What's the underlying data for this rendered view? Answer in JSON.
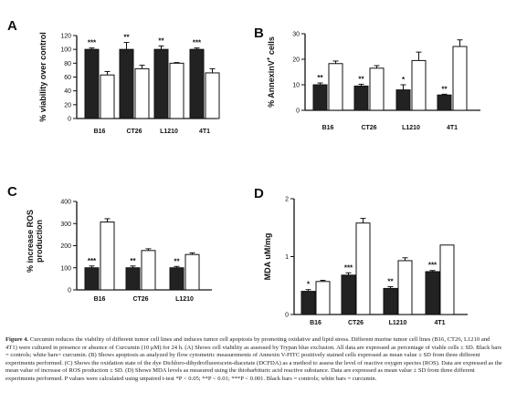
{
  "chart_data": [
    {
      "panel": "A",
      "type": "bar",
      "ylabel": "% viability over control",
      "ylim": [
        0,
        120
      ],
      "yticks": [
        0,
        20,
        40,
        60,
        80,
        100,
        120
      ],
      "categories": [
        "B16",
        "CT26",
        "L1210",
        "4T1"
      ],
      "series": [
        {
          "values": [
            100,
            100,
            100,
            100
          ],
          "errors": [
            2,
            10,
            5,
            2
          ],
          "color": "#222222"
        },
        {
          "values": [
            63,
            72,
            80,
            66
          ],
          "errors": [
            5,
            5,
            1,
            6
          ],
          "color": "#ffffff"
        }
      ],
      "significance": [
        "***",
        "**",
        "**",
        "***"
      ]
    },
    {
      "panel": "B",
      "type": "bar",
      "ylabel": "% AnnexinV+ cells",
      "ylim": [
        0,
        30
      ],
      "yticks": [
        0,
        10,
        20,
        30
      ],
      "categories": [
        "B16",
        "CT26",
        "L1210",
        "4T1"
      ],
      "series": [
        {
          "values": [
            10,
            9.5,
            8,
            6
          ],
          "errors": [
            0.7,
            0.7,
            2,
            0.3
          ],
          "color": "#222222"
        },
        {
          "values": [
            18.3,
            16.5,
            19.5,
            25
          ],
          "errors": [
            1,
            1,
            3.3,
            2.6
          ],
          "color": "#ffffff"
        }
      ],
      "significance": [
        "**",
        "**",
        "*",
        "**"
      ]
    },
    {
      "panel": "C",
      "type": "bar",
      "ylabel": "% increase ROS production",
      "ylim": [
        0,
        400
      ],
      "yticks": [
        0,
        100,
        200,
        300,
        400
      ],
      "categories": [
        "B16",
        "CT26",
        "L1210"
      ],
      "series": [
        {
          "values": [
            100,
            100,
            100
          ],
          "errors": [
            8,
            8,
            6
          ],
          "color": "#222222"
        },
        {
          "values": [
            307,
            178,
            160
          ],
          "errors": [
            15,
            8,
            7
          ],
          "color": "#ffffff"
        }
      ],
      "significance": [
        "***",
        "**",
        "**"
      ]
    },
    {
      "panel": "D",
      "type": "bar",
      "ylabel": "MDA uM/mg",
      "ylim": [
        0,
        2
      ],
      "yticks": [
        0,
        1,
        2
      ],
      "categories": [
        "B16",
        "CT26",
        "L1210",
        "4T1"
      ],
      "series": [
        {
          "values": [
            0.4,
            0.68,
            0.45,
            0.74
          ],
          "errors": [
            0.03,
            0.04,
            0.03,
            0.02
          ],
          "color": "#222222"
        },
        {
          "values": [
            0.57,
            1.58,
            0.93,
            1.2
          ],
          "errors": [
            0.02,
            0.08,
            0.05,
            0
          ],
          "color": "#ffffff"
        }
      ],
      "significance": [
        "*",
        "***",
        "**",
        "***"
      ]
    }
  ],
  "caption": {
    "lead": "Figure 4.",
    "text": "Curcumin reduces the viability of different tumor cell lines and induces tumor cell apoptosis by promoting oxidative and lipid stress. Different murine tumor cell lines (B16, CT26, L1210 and 4T1) were cultured in presence or absence of Curcumin (10 μM) for 24 h. (A) Shows cell viability as assessed by Trypan blue exclusion. All data are expressed as percentage of viable cells ± SD. Black bars = controls; white bars= curcumin. (B) Shows apoptosis as analyzed by flow cytometric measurements of Annexin V-FITC positively stained cells expressed as mean value ± SD from three different experiments performed. (C) Shows the oxidation state of the dye Dichloro-dihydrofluorescein-diacetate (DCFDA) as a method to assess the level of reactive oxygen species (ROS). Data are expressed as the mean value of increase of ROS production ± SD. (D) Shows MDA levels as measured using the thiobarbituric acid reactive substance. Data are expressed as mean value ± SD from three different experiments performed. P values were calculated using unpaired t-test *P < 0.05; **P < 0.01; ***P < 0.001. Black bars = controls; white bars = curcumin."
  }
}
